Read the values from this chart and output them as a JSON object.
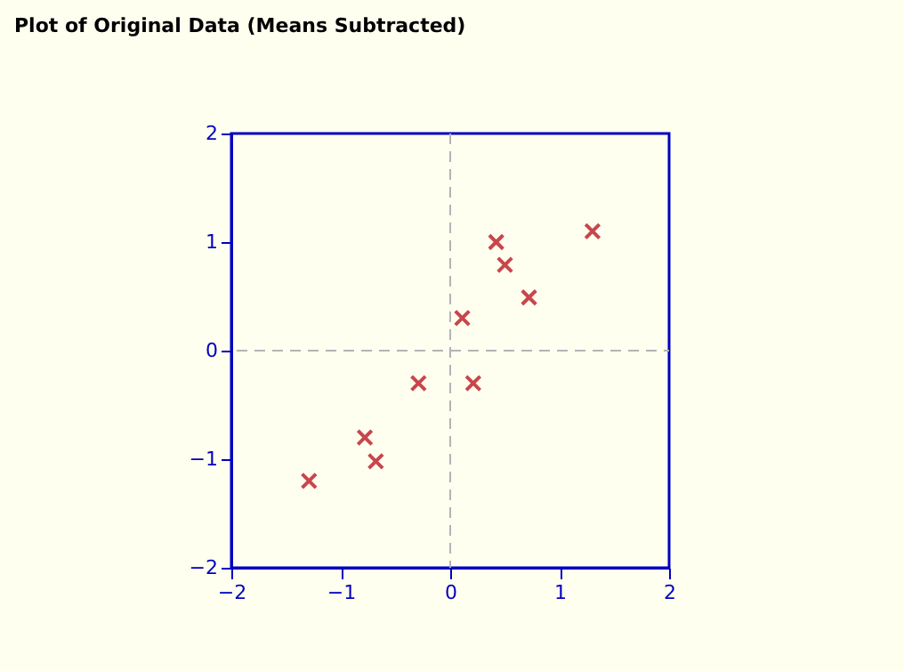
{
  "chart_data": {
    "type": "scatter",
    "title": "Plot of Original Data (Means Subtracted)",
    "x": [
      -1.29,
      -0.78,
      -0.68,
      -0.29,
      0.11,
      0.21,
      0.42,
      0.5,
      0.72,
      1.3
    ],
    "series": [
      {
        "color": "#c8464b",
        "values": [
          -1.2,
          -0.8,
          -1.02,
          -0.3,
          0.3,
          -0.3,
          1.0,
          0.79,
          0.49,
          1.1
        ]
      }
    ],
    "xlim": [
      -2,
      2
    ],
    "ylim": [
      -2,
      2
    ],
    "xticks": [
      -2,
      -1,
      0,
      1,
      2
    ],
    "yticks": [
      -2,
      -1,
      0,
      1,
      2
    ],
    "ref_lines": [
      {
        "axis": "x",
        "value": 0,
        "color": "#b4b4b4",
        "line_style": "dashed"
      },
      {
        "axis": "y",
        "value": 0,
        "color": "#b4b4b4",
        "line_style": "dashed"
      }
    ],
    "marker": "cross",
    "grid": false
  }
}
